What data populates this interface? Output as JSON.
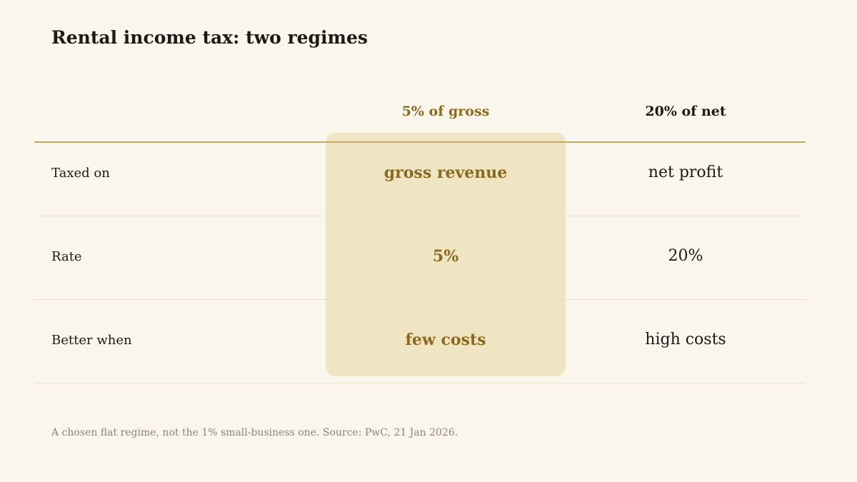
{
  "title": "Rental income tax: two regimes",
  "columns": [
    {
      "label": "5% of gross",
      "highlighted": true
    },
    {
      "label": "20% of net",
      "highlighted": false
    }
  ],
  "rows": [
    {
      "label": "Taxed on",
      "values": [
        "gross revenue",
        "net profit"
      ]
    },
    {
      "label": "Rate",
      "values": [
        "5%",
        "20%"
      ]
    },
    {
      "label": "Better when",
      "values": [
        "few costs",
        "high costs"
      ]
    }
  ],
  "footnote": "A chosen flat regime, not the 1% small-business one. Source: PwC, 21 Jan 2026.",
  "colors": {
    "background": "#faf6ec",
    "accent": "#8a6a20",
    "highlight": "#f0e5c3",
    "rule": "#c9a75a"
  }
}
